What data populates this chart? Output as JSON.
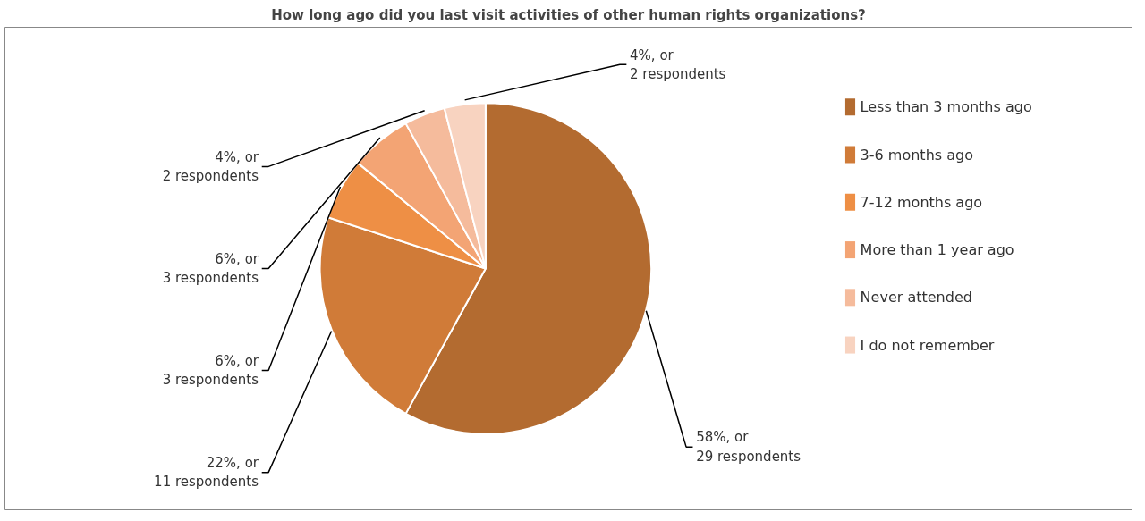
{
  "chart_data": {
    "type": "pie",
    "title": "How long ago did you last visit activities of other human rights organizations?",
    "categories": [
      "Less than 3 months ago",
      "3-6 months ago",
      "7-12 months ago",
      "More than 1 year ago",
      "Never attended",
      "I do not remember"
    ],
    "values": [
      58,
      22,
      6,
      6,
      4,
      4
    ],
    "value_labels": [
      "58%, or\n29 respondents",
      "22%, or\n11 respondents",
      "6%, or\n3 respondents",
      "6%, or\n3 respondents",
      "4%, or\n2 respondents",
      "4%, or\n2 respondents"
    ],
    "colors": [
      "#b36b30",
      "#d07b38",
      "#ee8f45",
      "#f3a474",
      "#f5bb9c",
      "#f8d3c0"
    ],
    "legend": "right"
  }
}
